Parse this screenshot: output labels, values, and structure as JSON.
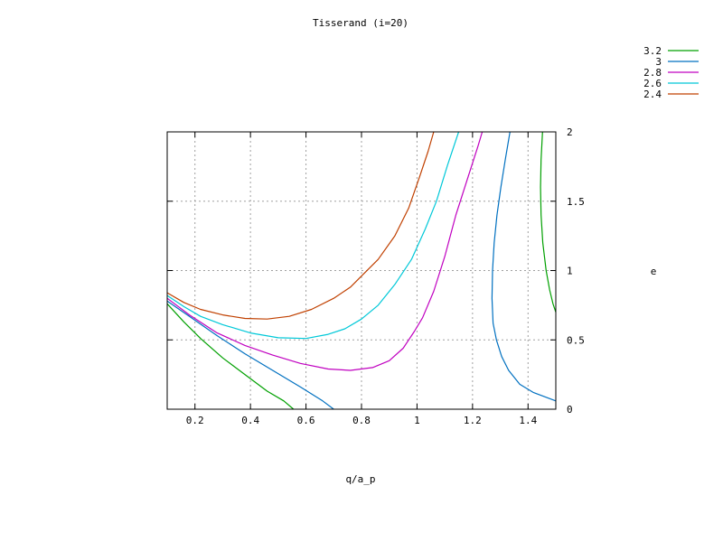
{
  "chart_data": {
    "type": "line",
    "title": "Tisserand (i=20)",
    "xlabel": "q/a_p",
    "ylabel": "e",
    "xlim": [
      0.1,
      1.5
    ],
    "ylim": [
      0,
      2
    ],
    "grid": true,
    "legend_position": "top-right",
    "x_ticks": [
      {
        "value": 0.2,
        "label": "0.2"
      },
      {
        "value": 0.4,
        "label": "0.4"
      },
      {
        "value": 0.6,
        "label": "0.6"
      },
      {
        "value": 0.8,
        "label": "0.8"
      },
      {
        "value": 1.0,
        "label": "1"
      },
      {
        "value": 1.2,
        "label": "1.2"
      },
      {
        "value": 1.4,
        "label": "1.4"
      }
    ],
    "y_ticks": [
      {
        "value": 0,
        "label": "0"
      },
      {
        "value": 0.5,
        "label": "0.5"
      },
      {
        "value": 1.0,
        "label": "1"
      },
      {
        "value": 1.5,
        "label": "1.5"
      },
      {
        "value": 2.0,
        "label": "2"
      }
    ],
    "series": [
      {
        "name": "3.2",
        "color": "#00a000",
        "segments": [
          [
            [
              0.1,
              0.76
            ],
            [
              0.16,
              0.63
            ],
            [
              0.22,
              0.51
            ],
            [
              0.3,
              0.37
            ],
            [
              0.38,
              0.25
            ],
            [
              0.46,
              0.13
            ],
            [
              0.52,
              0.06
            ],
            [
              0.555,
              0.0
            ]
          ],
          [
            [
              1.452,
              2.0
            ],
            [
              1.447,
              1.8
            ],
            [
              1.445,
              1.6
            ],
            [
              1.447,
              1.4
            ],
            [
              1.453,
              1.2
            ],
            [
              1.465,
              1.0
            ],
            [
              1.478,
              0.86
            ],
            [
              1.49,
              0.76
            ],
            [
              1.5,
              0.7
            ]
          ]
        ]
      },
      {
        "name": "3",
        "color": "#0070c0",
        "segments": [
          [
            [
              0.1,
              0.78
            ],
            [
              0.18,
              0.67
            ],
            [
              0.28,
              0.53
            ],
            [
              0.38,
              0.4
            ],
            [
              0.48,
              0.28
            ],
            [
              0.58,
              0.16
            ],
            [
              0.66,
              0.06
            ],
            [
              0.7,
              0.0
            ]
          ],
          [
            [
              1.335,
              2.0
            ],
            [
              1.318,
              1.8
            ],
            [
              1.302,
              1.6
            ],
            [
              1.288,
              1.4
            ],
            [
              1.278,
              1.2
            ],
            [
              1.272,
              1.0
            ],
            [
              1.27,
              0.8
            ],
            [
              1.274,
              0.62
            ],
            [
              1.286,
              0.5
            ],
            [
              1.305,
              0.38
            ],
            [
              1.33,
              0.28
            ],
            [
              1.37,
              0.18
            ],
            [
              1.42,
              0.12
            ],
            [
              1.5,
              0.06
            ]
          ]
        ]
      },
      {
        "name": "2.8",
        "color": "#c000c0",
        "segments": [
          [
            [
              0.1,
              0.8
            ],
            [
              0.18,
              0.68
            ],
            [
              0.28,
              0.55
            ],
            [
              0.38,
              0.46
            ],
            [
              0.48,
              0.39
            ],
            [
              0.58,
              0.33
            ],
            [
              0.68,
              0.29
            ],
            [
              0.76,
              0.28
            ],
            [
              0.84,
              0.3
            ],
            [
              0.9,
              0.35
            ],
            [
              0.95,
              0.44
            ],
            [
              0.99,
              0.56
            ],
            [
              1.02,
              0.66
            ],
            [
              1.06,
              0.85
            ],
            [
              1.1,
              1.1
            ],
            [
              1.14,
              1.4
            ],
            [
              1.18,
              1.65
            ],
            [
              1.22,
              1.9
            ],
            [
              1.235,
              2.0
            ]
          ]
        ]
      },
      {
        "name": "2.6",
        "color": "#00c8d8",
        "segments": [
          [
            [
              0.1,
              0.82
            ],
            [
              0.16,
              0.74
            ],
            [
              0.22,
              0.67
            ],
            [
              0.3,
              0.61
            ],
            [
              0.4,
              0.55
            ],
            [
              0.5,
              0.515
            ],
            [
              0.6,
              0.51
            ],
            [
              0.68,
              0.54
            ],
            [
              0.74,
              0.58
            ],
            [
              0.8,
              0.65
            ],
            [
              0.86,
              0.75
            ],
            [
              0.92,
              0.9
            ],
            [
              0.98,
              1.08
            ],
            [
              1.03,
              1.3
            ],
            [
              1.07,
              1.5
            ],
            [
              1.11,
              1.76
            ],
            [
              1.15,
              2.0
            ]
          ]
        ]
      },
      {
        "name": "2.4",
        "color": "#c04000",
        "segments": [
          [
            [
              0.1,
              0.84
            ],
            [
              0.16,
              0.77
            ],
            [
              0.22,
              0.72
            ],
            [
              0.3,
              0.68
            ],
            [
              0.38,
              0.655
            ],
            [
              0.46,
              0.65
            ],
            [
              0.54,
              0.67
            ],
            [
              0.62,
              0.72
            ],
            [
              0.7,
              0.8
            ],
            [
              0.76,
              0.88
            ],
            [
              0.8,
              0.96
            ],
            [
              0.86,
              1.08
            ],
            [
              0.92,
              1.25
            ],
            [
              0.97,
              1.45
            ],
            [
              1.01,
              1.68
            ],
            [
              1.04,
              1.86
            ],
            [
              1.06,
              2.0
            ]
          ]
        ]
      }
    ]
  }
}
